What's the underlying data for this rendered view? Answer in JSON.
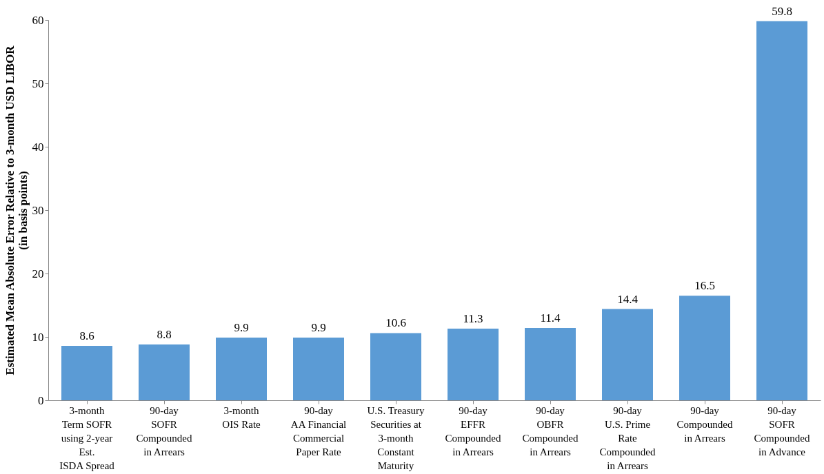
{
  "chart_data": {
    "type": "bar",
    "ylabel": "Estimated Mean Absolute Error Relative to 3-month USD LIBOR\n(in basis points)",
    "categories": [
      "3-month\nTerm SOFR\nusing 2-year\nEst.\nISDA Spread",
      "90-day\nSOFR\nCompounded\nin Arrears",
      "3-month\nOIS Rate",
      "90-day\nAA Financial\nCommercial\nPaper Rate",
      "U.S. Treasury\nSecurities at\n3-month\nConstant\nMaturity",
      "90-day\nEFFR\nCompounded\nin Arrears",
      "90-day\nOBFR\nCompounded\nin Arrears",
      "90-day\nU.S. Prime\nRate\nCompounded\nin Arrears",
      "90-day\nCompounded\nin Arrears",
      "90-day\nSOFR\nCompounded\nin Advance"
    ],
    "values": [
      8.6,
      8.8,
      9.9,
      9.9,
      10.6,
      11.3,
      11.4,
      14.4,
      16.5,
      59.8
    ],
    "color": "#5b9bd5",
    "ylim": [
      0,
      60
    ],
    "yticks": [
      0,
      10,
      20,
      30,
      40,
      50,
      60
    ],
    "grid": false,
    "data_labels": true
  }
}
